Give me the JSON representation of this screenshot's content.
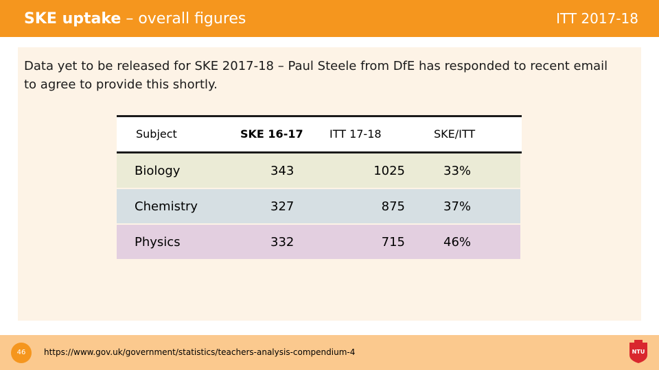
{
  "header": {
    "title_bold": "SKE uptake",
    "title_rest": " – overall figures",
    "tag": "ITT 2017-18"
  },
  "intro": "Data yet to be released for SKE 2017-18 – Paul Steele from DfE has responded to recent email to agree to provide this shortly.",
  "table": {
    "headers": [
      "Subject",
      "SKE 16-17",
      "ITT 17-18",
      "SKE/ITT"
    ],
    "rows": [
      {
        "subject": "Biology",
        "ske": "343",
        "itt": "1025",
        "ratio": "33%",
        "color": "#EBEBD6"
      },
      {
        "subject": "Chemistry",
        "ske": "327",
        "itt": "875",
        "ratio": "37%",
        "color": "#D6DFE3"
      },
      {
        "subject": "Physics",
        "ske": "332",
        "itt": "715",
        "ratio": "46%",
        "color": "#E3CFE0"
      }
    ]
  },
  "footer": {
    "page_number": "46",
    "url": "https://www.gov.uk/government/statistics/teachers-analysis-compendium-4",
    "logo_text": "NTU"
  },
  "colors": {
    "accent": "#F5961E",
    "panel": "#FDF3E6",
    "footer": "#FBC98E",
    "logo": "#D9272E"
  }
}
